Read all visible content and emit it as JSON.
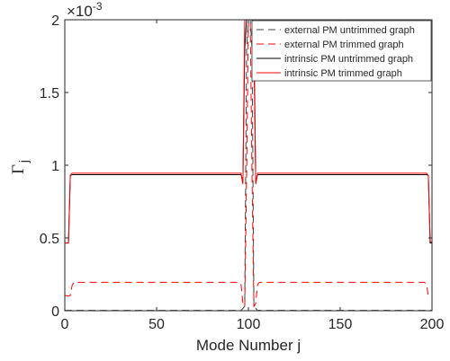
{
  "chart_data": {
    "type": "line",
    "xlabel": "Mode Number j",
    "ylabel": "Γ",
    "ylabel_subscript": "j",
    "xlim": [
      0,
      200
    ],
    "ylim": [
      0,
      0.002
    ],
    "y_exponent_label": "×10",
    "y_exponent_power": "-3",
    "x_ticks": [
      0,
      50,
      100,
      150,
      200
    ],
    "x_tick_labels": [
      "0",
      "50",
      "100",
      "150",
      "200"
    ],
    "y_ticks": [
      0,
      0.0005,
      0.001,
      0.0015,
      0.002
    ],
    "y_tick_labels": [
      "0",
      "0.5",
      "1",
      "1.5",
      "2"
    ],
    "grid": false,
    "legend_position": "top-right",
    "colors": {
      "black": "#000000",
      "red": "#ff0000",
      "gray_dash": "#555555"
    },
    "series": [
      {
        "name": "external PM untrimmed graph",
        "color": "#404040",
        "dash": "dashed",
        "points": [
          [
            0,
            2e-06
          ],
          [
            96,
            2e-06
          ],
          [
            98,
            3e-05
          ],
          [
            99,
            0.0018
          ],
          [
            100,
            0.002
          ],
          [
            101,
            0.002
          ],
          [
            102,
            0.0018
          ],
          [
            103,
            3e-05
          ],
          [
            105,
            2e-06
          ],
          [
            200,
            2e-06
          ]
        ]
      },
      {
        "name": "external PM trimmed graph",
        "color": "#ff0000",
        "dash": "dashed",
        "points": [
          [
            0,
            0.000105
          ],
          [
            2,
            0.0001
          ],
          [
            3,
            0.000105
          ],
          [
            4,
            0.000175
          ],
          [
            5,
            0.000195
          ],
          [
            95,
            0.000195
          ],
          [
            96,
            0.00018
          ],
          [
            97,
            5e-05
          ],
          [
            98,
            3e-05
          ],
          [
            99,
            0.0009
          ],
          [
            100,
            0.002
          ],
          [
            101,
            0.002
          ],
          [
            102,
            0.0009
          ],
          [
            103,
            3e-05
          ],
          [
            104,
            5e-05
          ],
          [
            105,
            0.00018
          ],
          [
            106,
            0.000195
          ],
          [
            196,
            0.000195
          ],
          [
            197,
            0.000175
          ],
          [
            198,
            0.000105
          ],
          [
            200,
            0.0001
          ]
        ]
      },
      {
        "name": "intrinsic PM untrimmed graph",
        "color": "#000000",
        "dash": "solid",
        "points": [
          [
            0,
            0.000465
          ],
          [
            2,
            0.000465
          ],
          [
            3,
            0.00093
          ],
          [
            4,
            0.000935
          ],
          [
            96,
            0.000935
          ],
          [
            97,
            0.00088
          ],
          [
            98,
            0.0018
          ],
          [
            99,
            0.002
          ],
          [
            102,
            0.002
          ],
          [
            103,
            0.0018
          ],
          [
            104,
            0.00088
          ],
          [
            105,
            0.000935
          ],
          [
            197,
            0.000935
          ],
          [
            198,
            0.00093
          ],
          [
            199,
            0.000465
          ],
          [
            200,
            0.000465
          ]
        ]
      },
      {
        "name": "intrinsic PM trimmed graph",
        "color": "#ff0000",
        "dash": "solid",
        "points": [
          [
            0,
            0.000465
          ],
          [
            2,
            0.000465
          ],
          [
            3,
            0.00093
          ],
          [
            4,
            0.000945
          ],
          [
            96,
            0.000945
          ],
          [
            97,
            0.00087
          ],
          [
            98,
            0.002
          ],
          [
            99,
            0.002
          ],
          [
            102,
            0.002
          ],
          [
            103,
            0.002
          ],
          [
            104,
            0.00087
          ],
          [
            105,
            0.000945
          ],
          [
            197,
            0.000945
          ],
          [
            198,
            0.00093
          ],
          [
            199,
            0.00048
          ],
          [
            200,
            0.000465
          ]
        ]
      }
    ]
  }
}
